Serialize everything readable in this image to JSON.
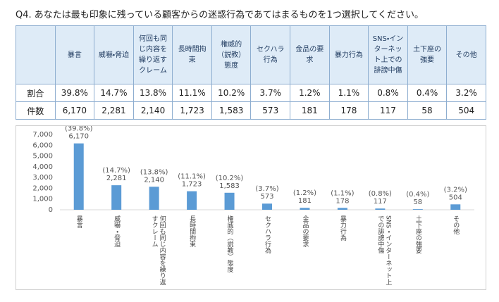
{
  "title": "Q4. あなたは最も印象に残っている顧客からの迷惑行為であてはまるものを1つ選択してください。",
  "table": {
    "rows": [
      {
        "label": "割合",
        "cells": [
          "39.8%",
          "14.7%",
          "13.8%",
          "11.1%",
          "10.2%",
          "3.7%",
          "1.2%",
          "1.1%",
          "0.8%",
          "0.4%",
          "3.2%"
        ]
      },
      {
        "label": "件数",
        "cells": [
          "6,170",
          "2,281",
          "2,140",
          "1,723",
          "1,583",
          "573",
          "181",
          "178",
          "117",
          "58",
          "504"
        ]
      }
    ]
  },
  "chart_data": {
    "type": "bar",
    "categories": [
      "暴言",
      "威嚇・脅迫",
      "何回も同じ内容を繰り返すクレーム",
      "長時間拘束",
      "権威的（説教）態度",
      "セクハラ行為",
      "金品の要求",
      "暴力行為",
      "SNS・インターネット上での誹謗中傷",
      "土下座の強要",
      "その他"
    ],
    "values": [
      6170,
      2281,
      2140,
      1723,
      1583,
      573,
      181,
      178,
      117,
      58,
      504
    ],
    "value_labels": [
      "6,170",
      "2,281",
      "2,140",
      "1,723",
      "1,583",
      "573",
      "181",
      "178",
      "117",
      "58",
      "504"
    ],
    "share_labels": [
      "(39.8%)",
      "(14.7%)",
      "(13.8%)",
      "(11.1%)",
      "(10.2%)",
      "(3.7%)",
      "(1.2%)",
      "(1.1%)",
      "(0.8%)",
      "(0.4%)",
      "(3.2%)"
    ],
    "color": "#5b9bd5",
    "ylim": [
      0,
      7000
    ],
    "yticks": [
      0,
      {
        "value": 1000,
        "label": "1,000"
      },
      {
        "value": 2000,
        "label": "2,000"
      },
      {
        "value": 3000,
        "label": "3,000"
      },
      {
        "value": 4000,
        "label": "4,000"
      },
      {
        "value": 5000,
        "label": "5,000"
      },
      {
        "value": 6000,
        "label": "6,000"
      },
      {
        "value": 7000,
        "label": "7,000"
      }
    ]
  }
}
